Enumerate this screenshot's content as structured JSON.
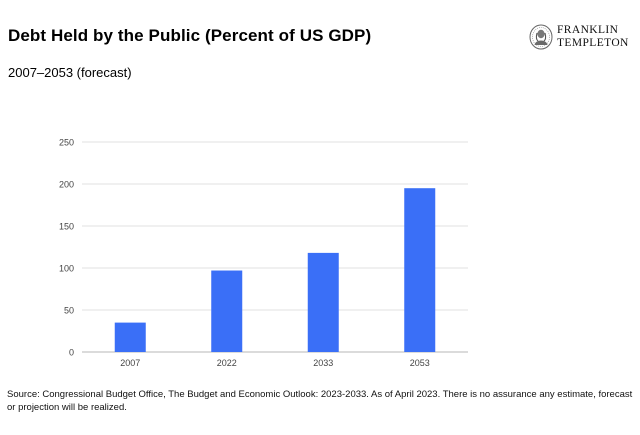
{
  "header": {
    "title": "Debt Held by the Public (Percent of US GDP)",
    "subtitle": "2007–2053 (forecast)"
  },
  "logo": {
    "line1": "FRANKLIN",
    "line2": "TEMPLETON",
    "icon": "franklin-portrait-icon"
  },
  "chart_data": {
    "type": "bar",
    "title": "Debt Held by the Public (Percent of US GDP)",
    "subtitle": "2007–2053 (forecast)",
    "categories": [
      "2007",
      "2022",
      "2033",
      "2053"
    ],
    "values": [
      35,
      97,
      118,
      195
    ],
    "xlabel": "",
    "ylabel": "",
    "ylim": [
      0,
      250
    ],
    "yticks": [
      0,
      50,
      100,
      150,
      200,
      250
    ],
    "grid": true,
    "legend": "none",
    "bar_color": "#3a6ff7"
  },
  "footer": {
    "source": "Source: Congressional Budget Office, The Budget and Economic Outlook: 2023-2033. As of April 2023. There is no assurance any estimate, forecast or projection will be realized."
  }
}
